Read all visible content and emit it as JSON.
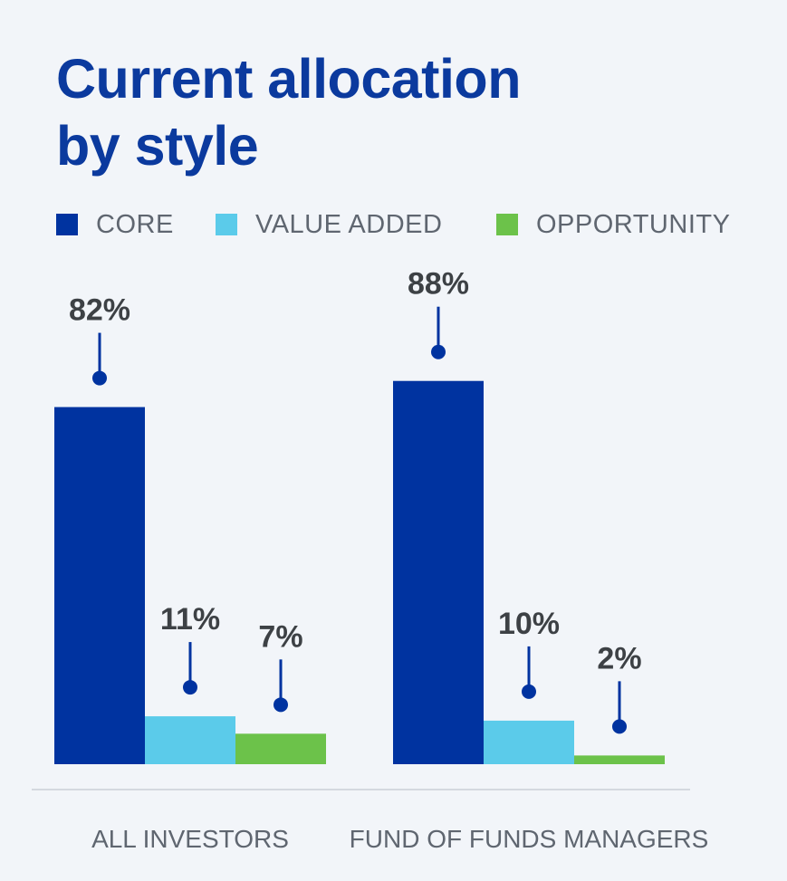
{
  "title": {
    "line1": "Current allocation",
    "line2": "by style"
  },
  "legend": [
    {
      "label": "CORE",
      "color": "#0033a0"
    },
    {
      "label": "VALUE ADDED",
      "color": "#5bcbea"
    },
    {
      "label": "OPPORTUNITY",
      "color": "#6cc24a"
    }
  ],
  "colors": {
    "background": "#f2f5f9",
    "title": "#0b3a9e",
    "pin": "#0033a0",
    "value_text": "#3d4145",
    "axis_text": "#5f6670",
    "baseline": "#d4d9df"
  },
  "chart_data": {
    "type": "bar",
    "title": "Current allocation by style",
    "categories": [
      "ALL INVESTORS",
      "FUND OF FUNDS MANAGERS"
    ],
    "series": [
      {
        "name": "CORE",
        "values": [
          82,
          88
        ],
        "labels": [
          "82%",
          "88%"
        ]
      },
      {
        "name": "VALUE ADDED",
        "values": [
          11,
          10
        ],
        "labels": [
          "11%",
          "10%"
        ]
      },
      {
        "name": "OPPORTUNITY",
        "values": [
          7,
          2
        ],
        "labels": [
          "7%",
          "2%"
        ]
      }
    ],
    "ylim": [
      0,
      100
    ],
    "unit": "%",
    "grid": false,
    "legend_position": "top-left"
  }
}
